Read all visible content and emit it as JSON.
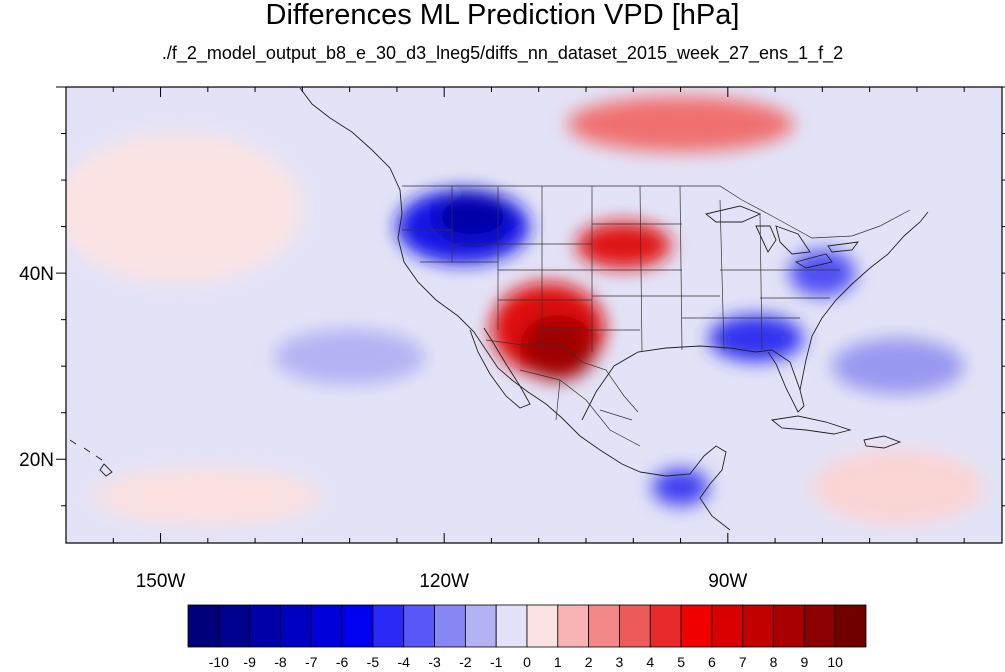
{
  "title": "Differences ML Prediction VPD [hPa]",
  "subtitle": "./f_2_model_output_b8_e_30_d3_lneg5/diffs_nn_dataset_2015_week_27_ens_1_f_2",
  "map": {
    "lon_range": [
      -160,
      -61
    ],
    "lat_range": [
      11,
      60
    ],
    "lon_ticks": [
      {
        "value": -150,
        "label": "150W"
      },
      {
        "value": -120,
        "label": "120W"
      },
      {
        "value": -90,
        "label": "90W"
      }
    ],
    "lat_ticks": [
      {
        "value": 40,
        "label": "40N"
      },
      {
        "value": 20,
        "label": "20N"
      }
    ]
  },
  "colorbar": {
    "levels": [
      "-10",
      "-9",
      "-8",
      "-7",
      "-6",
      "-5",
      "-4",
      "-3",
      "-2",
      "-1",
      "0",
      "1",
      "2",
      "3",
      "4",
      "5",
      "6",
      "7",
      "8",
      "9",
      "10"
    ],
    "colors": [
      "#00007a",
      "#00008f",
      "#0000a8",
      "#0000c2",
      "#0000db",
      "#0000f0",
      "#2a2af8",
      "#5858f8",
      "#8787f4",
      "#b3b3f4",
      "#e2e2f8",
      "#fde2e2",
      "#f8b4b4",
      "#f28888",
      "#ec5a5a",
      "#e82a2a",
      "#f00000",
      "#d80000",
      "#c20000",
      "#a80000",
      "#8c0000",
      "#700000"
    ]
  },
  "field": {
    "background_color": "#e3e3f7",
    "regions": [
      {
        "name": "north-pacific-light-red",
        "lon": -148,
        "lat": 47,
        "rx": 13,
        "ry": 8,
        "color": "#fce3e3"
      },
      {
        "name": "canada-red-band",
        "lon": -95,
        "lat": 56,
        "rx": 12,
        "ry": 3,
        "color": "#f07070"
      },
      {
        "name": "northwest-blue",
        "lon": -118,
        "lat": 45,
        "rx": 7,
        "ry": 4,
        "color": "#1818e8"
      },
      {
        "name": "northwest-deep-blue",
        "lon": -117,
        "lat": 46,
        "rx": 4,
        "ry": 2.5,
        "color": "#0000a8"
      },
      {
        "name": "southwest-red",
        "lon": -109,
        "lat": 34,
        "rx": 6,
        "ry": 5,
        "color": "#e01010"
      },
      {
        "name": "southwest-dark-red",
        "lon": -108,
        "lat": 32,
        "rx": 4,
        "ry": 3.5,
        "color": "#a00000"
      },
      {
        "name": "plains-red",
        "lon": -101,
        "lat": 43,
        "rx": 5,
        "ry": 2.5,
        "color": "#e01818"
      },
      {
        "name": "southeast-blue",
        "lon": -87,
        "lat": 33,
        "rx": 5,
        "ry": 2.5,
        "color": "#3030f0"
      },
      {
        "name": "great-lakes-blue",
        "lon": -80,
        "lat": 40,
        "rx": 3.5,
        "ry": 2.5,
        "color": "#5050f4"
      },
      {
        "name": "atlantic-blue",
        "lon": -72,
        "lat": 30,
        "rx": 7,
        "ry": 3,
        "color": "#9898f0"
      },
      {
        "name": "mexico-blue",
        "lon": -95,
        "lat": 17,
        "rx": 3,
        "ry": 2,
        "color": "#4040f0"
      },
      {
        "name": "east-pacific-blue",
        "lon": -130,
        "lat": 31,
        "rx": 8,
        "ry": 3,
        "color": "#b3b3f4"
      },
      {
        "name": "south-pacific-light-red",
        "lon": -145,
        "lat": 16,
        "rx": 12,
        "ry": 3,
        "color": "#fce0e0"
      },
      {
        "name": "caribbean-light-red",
        "lon": -72,
        "lat": 17,
        "rx": 9,
        "ry": 4,
        "color": "#fbd4d4"
      }
    ]
  }
}
